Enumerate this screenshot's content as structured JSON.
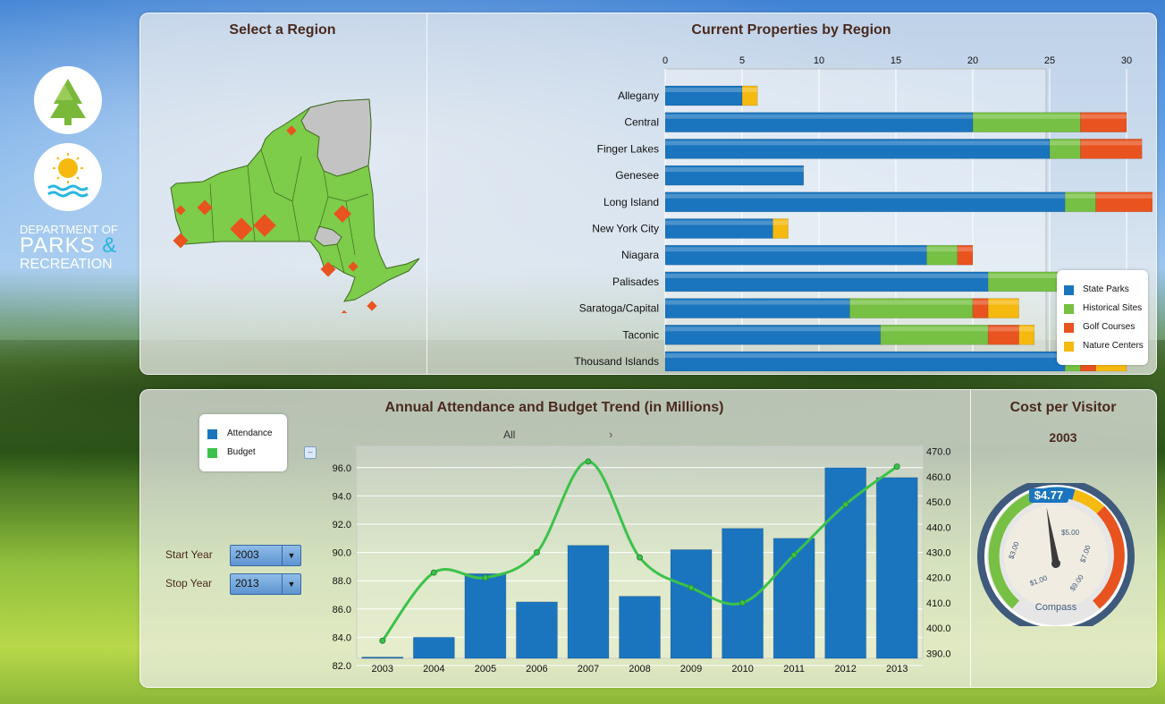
{
  "department": {
    "line1": "DEPARTMENT OF",
    "line2": "PARKS",
    "amp": "&",
    "line3": "RECREATION"
  },
  "region_panel": {
    "title": "Select a Region"
  },
  "properties_chart": {
    "title": "Current Properties by Region",
    "colors": {
      "State Parks": "#1a75be",
      "Historical Sites": "#76c043",
      "Golf Courses": "#e8531f",
      "Nature Centers": "#f5b910"
    },
    "legend": [
      "State Parks",
      "Historical Sites",
      "Golf Courses",
      "Nature Centers"
    ]
  },
  "attendance_chart": {
    "title": "Annual Attendance and Budget Trend (in Millions)",
    "legend": [
      "Attendance",
      "Budget"
    ],
    "filter": "All",
    "start_label": "Start Year",
    "start_value": "2003",
    "stop_label": "Stop Year",
    "stop_value": "2013"
  },
  "cost_panel": {
    "title": "Cost per Visitor",
    "year": "2003",
    "value": "$4.77",
    "gauge_label": "Compass",
    "gauge_ticks": [
      "$1.00",
      "$3.00",
      "$5.00",
      "$7.00",
      "$9.00"
    ],
    "gauge_value_fraction": 0.4
  },
  "chart_data": [
    {
      "type": "bar",
      "orientation": "horizontal",
      "stacked": true,
      "title": "Current Properties by Region",
      "categories": [
        "Allegany",
        "Central",
        "Finger Lakes",
        "Genesee",
        "Long Island",
        "New York City",
        "Niagara",
        "Palisades",
        "Saratoga/Capital",
        "Taconic",
        "Thousand Islands"
      ],
      "xlim": [
        0,
        40
      ],
      "xticks": [
        0,
        5,
        10,
        15,
        20,
        25,
        30,
        35,
        40
      ],
      "series": [
        {
          "name": "State Parks",
          "values": [
            5,
            20,
            25,
            9,
            26,
            7,
            17,
            21,
            12,
            14,
            26
          ]
        },
        {
          "name": "Historical Sites",
          "values": [
            0,
            7,
            2,
            0,
            2,
            0,
            2,
            7,
            8,
            7,
            1
          ]
        },
        {
          "name": "Golf Courses",
          "values": [
            0,
            3,
            4,
            0,
            6,
            0,
            1,
            1,
            1,
            2,
            1
          ]
        },
        {
          "name": "Nature Centers",
          "values": [
            1,
            0,
            0,
            0,
            3,
            1,
            0,
            0,
            2,
            1,
            2
          ]
        }
      ],
      "legend_position": "bottom-right"
    },
    {
      "type": "bar",
      "title": "Annual Attendance and Budget Trend (in Millions)",
      "categories": [
        "2003",
        "2004",
        "2005",
        "2006",
        "2007",
        "2008",
        "2009",
        "2010",
        "2011",
        "2012",
        "2013"
      ],
      "ylim": [
        82,
        97
      ],
      "yticks": [
        "82.0",
        "84.0",
        "86.0",
        "88.0",
        "90.0",
        "92.0",
        "94.0",
        "96.0"
      ],
      "y2lim": [
        388,
        472
      ],
      "y2ticks": [
        "390.0",
        "400.0",
        "410.0",
        "420.0",
        "430.0",
        "440.0",
        "450.0",
        "460.0",
        "470.0"
      ],
      "series": [
        {
          "name": "Attendance",
          "type": "bar",
          "axis": "left",
          "values": [
            82.6,
            84.0,
            88.5,
            86.5,
            90.5,
            86.9,
            90.2,
            91.7,
            91.0,
            96.0,
            95.3
          ]
        },
        {
          "name": "Budget",
          "type": "line",
          "axis": "right",
          "values": [
            395,
            422,
            420,
            430,
            466,
            428,
            416,
            410,
            429,
            449,
            464
          ]
        }
      ],
      "legend_position": "top-left"
    }
  ]
}
